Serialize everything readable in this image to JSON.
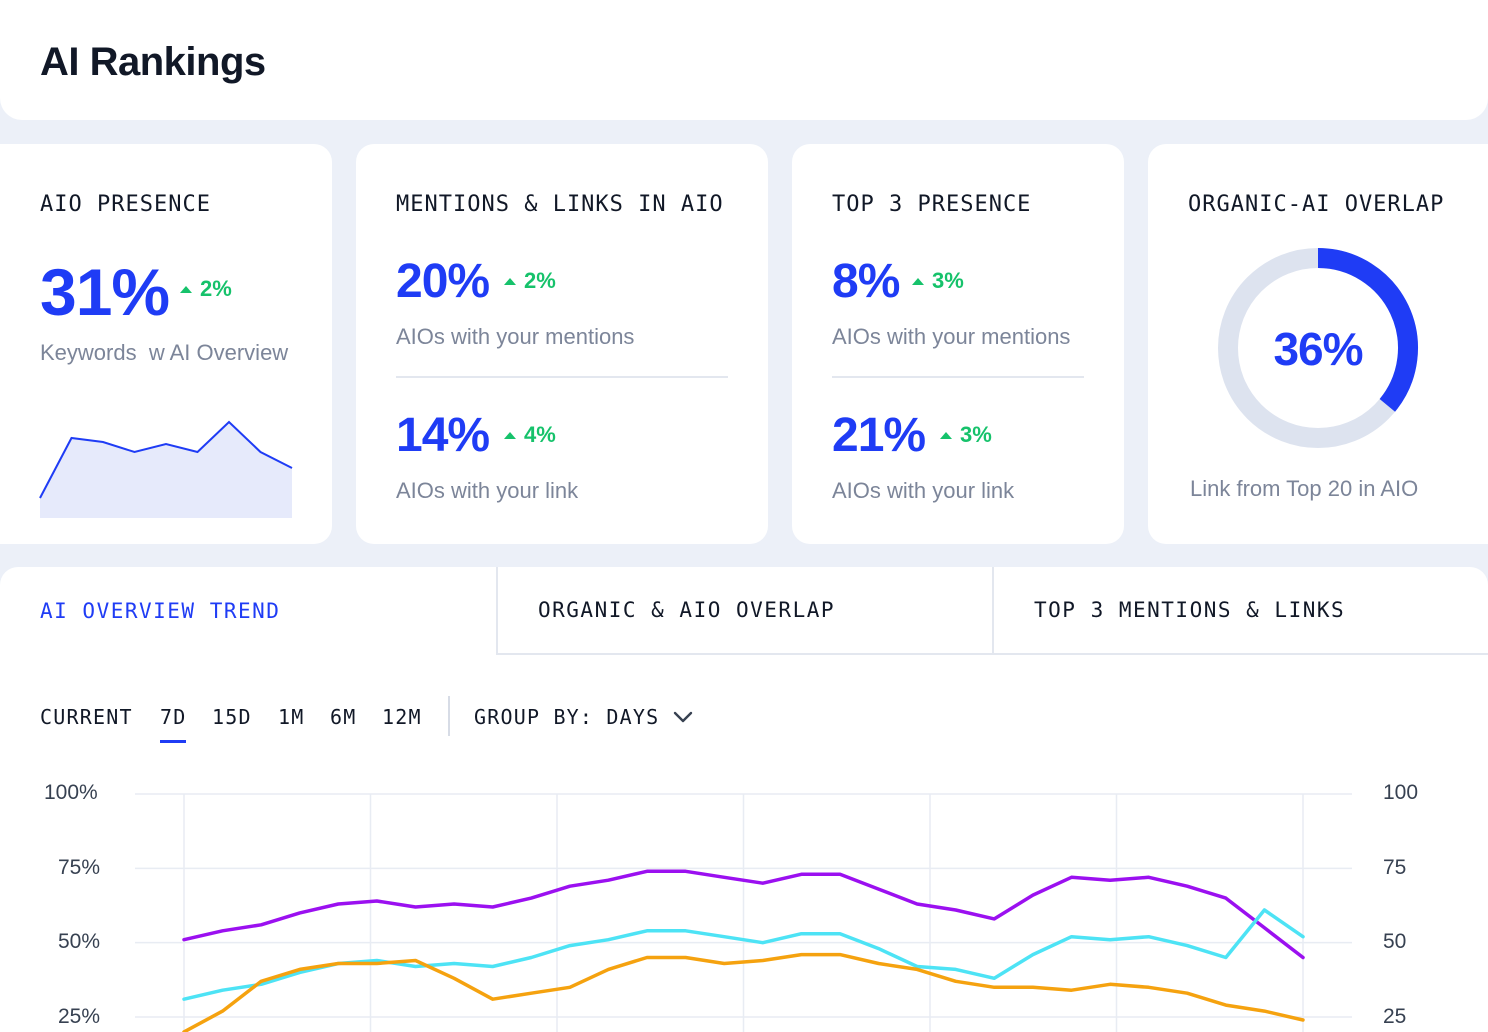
{
  "header": {
    "title": "AI Rankings"
  },
  "cards": {
    "aio_presence": {
      "title": "AIO PRESENCE",
      "value": "31%",
      "delta": "2%",
      "label": "Keywords  w AI Overview",
      "sparkline_values": [
        10,
        40,
        38,
        33,
        37,
        33,
        48,
        33,
        25
      ]
    },
    "mentions_links": {
      "title": "MENTIONS & LINKS IN AIO",
      "mentions_value": "20%",
      "mentions_delta": "2%",
      "mentions_label": "AIOs with your mentions",
      "link_value": "14%",
      "link_delta": "4%",
      "link_label": "AIOs with your link"
    },
    "top3": {
      "title": "TOP 3 PRESENCE",
      "mentions_value": "8%",
      "mentions_delta": "3%",
      "mentions_label": "AIOs with your mentions",
      "link_value": "21%",
      "link_delta": "3%",
      "link_label": "AIOs with your link"
    },
    "overlap": {
      "title": "ORGANIC-AI OVERLAP",
      "value": "36%",
      "percent": 36,
      "label": "Link from Top 20 in AIO"
    }
  },
  "tabs": [
    {
      "label": "AI OVERVIEW TREND",
      "active": true
    },
    {
      "label": "ORGANIC & AIO OVERLAP",
      "active": false
    },
    {
      "label": "TOP 3 MENTIONS & LINKS",
      "active": false
    }
  ],
  "ranges": {
    "current": "CURRENT",
    "options": [
      "7D",
      "15D",
      "1M",
      "6M",
      "12M"
    ],
    "active": "7D",
    "group_by": "GROUP BY: DAYS"
  },
  "colors": {
    "accent": "#1f3cf5",
    "positive": "#16c26b",
    "series_purple": "#9b10f0",
    "series_cyan": "#4de3f5",
    "series_orange": "#f5a20f"
  },
  "chart_data": {
    "type": "line",
    "left_axis_ticks": [
      "100%",
      "75%",
      "50%",
      "25%"
    ],
    "right_axis_ticks": [
      "100",
      "75",
      "50",
      "25"
    ],
    "ylim": [
      0,
      100
    ],
    "grid": true,
    "series": [
      {
        "color": "#9b10f0",
        "values": [
          51,
          54,
          56,
          60,
          63,
          64,
          62,
          63,
          62,
          65,
          69,
          71,
          74,
          74,
          72,
          70,
          73,
          73,
          68,
          63,
          61,
          58,
          66,
          72,
          71,
          72,
          69,
          65,
          55,
          45
        ]
      },
      {
        "color": "#4de3f5",
        "values": [
          31,
          34,
          36,
          40,
          43,
          44,
          42,
          43,
          42,
          45,
          49,
          51,
          54,
          54,
          52,
          50,
          53,
          53,
          48,
          42,
          41,
          38,
          46,
          52,
          51,
          52,
          49,
          45,
          61,
          52
        ]
      },
      {
        "color": "#f5a20f",
        "values": [
          20,
          27,
          37,
          41,
          43,
          43,
          44,
          38,
          31,
          33,
          35,
          41,
          45,
          45,
          43,
          44,
          46,
          46,
          43,
          41,
          37,
          35,
          35,
          34,
          36,
          35,
          33,
          29,
          27,
          24
        ]
      }
    ]
  }
}
